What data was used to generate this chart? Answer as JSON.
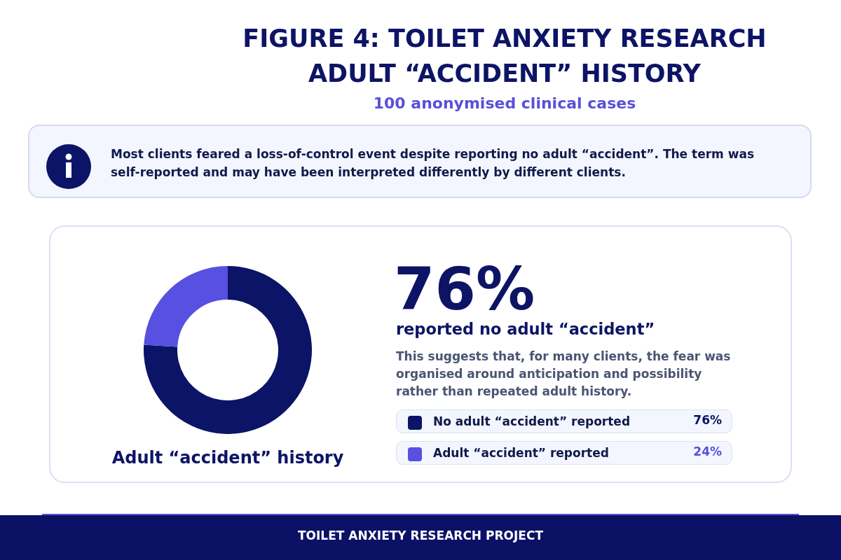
{
  "chart_data": {
    "type": "donut",
    "title": "FIGURE 4: TOILET ANXIETY RESEARCH\nADULT “ACCIDENT” HISTORY",
    "subtitle": "100 anonymised clinical cases",
    "categories": [
      "No adult “accident” reported",
      "Adult “accident” reported"
    ],
    "values": [
      76,
      24
    ],
    "colors": [
      "#0b1466",
      "#5850e0"
    ],
    "value_labels": [
      "76%",
      "24%"
    ],
    "legend": "right",
    "annotations": [
      "Most clients feared a loss-of-control event despite reporting no adult “accident”. The term was self-reported and may have been interpreted differently by different clients.",
      "Adult “accident” history",
      "76%",
      "reported no adult “accident”",
      "This suggests that, for many clients, the fear was organised around anticipation and possibility rather than repeated adult history.",
      "TOILET ANXIETY RESEARCH PROJECT"
    ]
  }
}
